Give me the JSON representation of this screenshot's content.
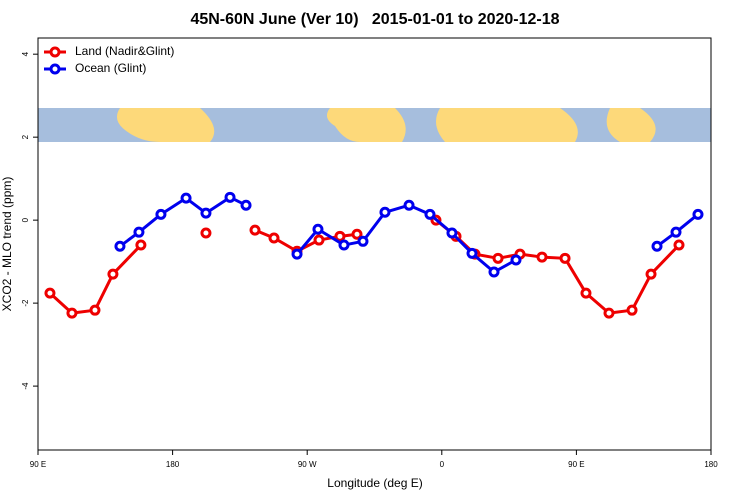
{
  "chart_data": {
    "type": "line",
    "title": "45N-60N June (Ver 10)   2015-01-01 to 2020-12-18",
    "x_label": "Longitude (deg E)",
    "y_label": "XCO2 - MLO trend (ppm)",
    "xlim": [
      90,
      540
    ],
    "ylim": [
      -5.54,
      4.39
    ],
    "xticks": [
      {
        "value": 90,
        "label": "90 E"
      },
      180,
      {
        "value": 270,
        "label": "90 W"
      },
      {
        "value": 360,
        "label": "0"
      },
      {
        "value": 450,
        "label": "90 E"
      },
      {
        "value": 540,
        "label": "180"
      }
    ],
    "yticks": [
      -4,
      -2,
      0,
      2,
      4
    ],
    "legend": "top-left",
    "series": [
      {
        "name": "Land (Nadir&Glint)",
        "color": "#ee0000",
        "x": [
          98.0,
          112.7,
          128.1,
          140.1,
          158.8,
          null,
          202.3,
          null,
          235.1,
          247.8,
          263.2,
          277.9,
          291.9,
          303.3,
          null,
          356.1,
          369.5,
          382.2,
          397.6,
          412.3,
          427.0,
          442.4,
          456.4,
          471.8,
          487.2,
          499.9,
          518.6
        ],
        "values": [
          -1.76,
          -2.24,
          -2.17,
          -1.3,
          -0.6,
          null,
          -0.31,
          null,
          -0.24,
          -0.43,
          -0.75,
          -0.48,
          -0.39,
          -0.34,
          null,
          0.0,
          -0.39,
          -0.82,
          -0.92,
          -0.82,
          -0.89,
          -0.92,
          -1.76,
          -2.24,
          -2.17,
          -1.3,
          -0.6
        ]
      },
      {
        "name": "Ocean (Glint)",
        "color": "#0000ee",
        "x": [
          144.8,
          157.5,
          172.2,
          189.0,
          202.3,
          218.4,
          229.1,
          null,
          263.2,
          277.2,
          294.6,
          307.3,
          322.0,
          338.1,
          352.1,
          366.8,
          380.2,
          394.9,
          409.6,
          null,
          503.9,
          516.6,
          531.3
        ],
        "values": [
          -0.63,
          -0.29,
          0.14,
          0.53,
          0.17,
          0.55,
          0.36,
          null,
          -0.82,
          -0.22,
          -0.6,
          -0.51,
          0.19,
          0.36,
          0.14,
          -0.31,
          -0.8,
          -1.25,
          -0.96,
          null,
          -0.63,
          -0.29,
          0.14
        ]
      }
    ]
  }
}
